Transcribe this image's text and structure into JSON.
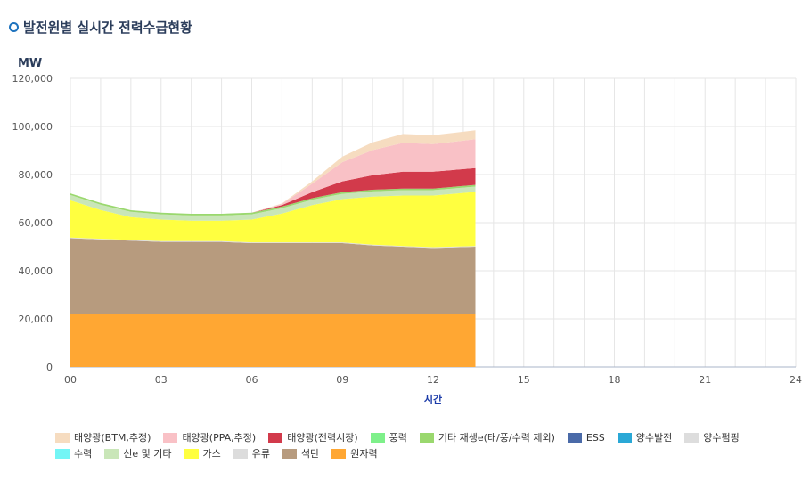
{
  "title": "발전원별 실시간 전력수급현황",
  "chart_data": {
    "type": "area",
    "stacked": true,
    "title": "발전원별 실시간 전력수급현황",
    "ylabel": "MW",
    "xlabel": "시간",
    "xlim": [
      0,
      24
    ],
    "ylim": [
      0,
      120000
    ],
    "xticks": [
      "00",
      "03",
      "06",
      "09",
      "12",
      "15",
      "18",
      "21",
      "24"
    ],
    "xtick_values": [
      0,
      3,
      6,
      9,
      12,
      15,
      18,
      21,
      24
    ],
    "yticks": [
      "0",
      "20,000",
      "40,000",
      "60,000",
      "80,000",
      "100,000",
      "120,000"
    ],
    "ytick_values": [
      0,
      20000,
      40000,
      60000,
      80000,
      100000,
      120000
    ],
    "grid": true,
    "legend_position": "bottom",
    "x": [
      0,
      1,
      2,
      3,
      4,
      5,
      6,
      7,
      8,
      9,
      10,
      11,
      12,
      13.4
    ],
    "series": [
      {
        "name": "원자력",
        "color": "#ffa733",
        "values": [
          22000,
          22000,
          22000,
          22000,
          22000,
          22000,
          22000,
          22000,
          22000,
          22000,
          22000,
          22000,
          22000,
          22000
        ]
      },
      {
        "name": "석탄",
        "color": "#b79b7e",
        "values": [
          31500,
          31000,
          30500,
          30000,
          30000,
          30000,
          29500,
          29500,
          29500,
          29500,
          28500,
          28000,
          27500,
          28000
        ]
      },
      {
        "name": "유류",
        "color": "#dcdcdc",
        "values": [
          300,
          300,
          300,
          300,
          300,
          300,
          300,
          300,
          300,
          300,
          300,
          300,
          300,
          300
        ]
      },
      {
        "name": "가스",
        "color": "#ffff40",
        "values": [
          15500,
          12000,
          9500,
          9000,
          8500,
          8500,
          9500,
          12000,
          15500,
          18000,
          20000,
          21000,
          21500,
          22500
        ]
      },
      {
        "name": "신e 및 기타",
        "color": "#c9e6b8",
        "values": [
          2200,
          2200,
          2200,
          2200,
          2200,
          2200,
          2200,
          2200,
          2200,
          2200,
          2200,
          2200,
          2200,
          2200
        ]
      },
      {
        "name": "수력",
        "color": "#73f5f5",
        "values": [
          0,
          0,
          0,
          0,
          0,
          0,
          0,
          0,
          0,
          0,
          0,
          0,
          0,
          0
        ]
      },
      {
        "name": "양수펌핑",
        "color": "#dddddd",
        "values": [
          0,
          0,
          0,
          0,
          0,
          0,
          0,
          0,
          0,
          0,
          0,
          0,
          0,
          0
        ]
      },
      {
        "name": "양수발전",
        "color": "#2aa8d6",
        "values": [
          0,
          0,
          0,
          0,
          0,
          0,
          0,
          0,
          0,
          0,
          0,
          0,
          0,
          0
        ]
      },
      {
        "name": "ESS",
        "color": "#4a6aa8",
        "values": [
          0,
          0,
          0,
          0,
          0,
          0,
          0,
          0,
          0,
          0,
          0,
          0,
          0,
          0
        ]
      },
      {
        "name": "기타 재생e(태/풍/수력 제외)",
        "color": "#9ad86e",
        "values": [
          700,
          700,
          700,
          700,
          700,
          700,
          700,
          700,
          700,
          700,
          700,
          700,
          700,
          700
        ]
      },
      {
        "name": "풍력",
        "color": "#7ef08a",
        "values": [
          0,
          0,
          0,
          0,
          0,
          0,
          0,
          0,
          0,
          0,
          0,
          0,
          0,
          0
        ]
      },
      {
        "name": "태양광(전력시장)",
        "color": "#d23a4b",
        "values": [
          0,
          0,
          0,
          0,
          0,
          0,
          0,
          600,
          2500,
          4500,
          6000,
          7000,
          7000,
          7000
        ]
      },
      {
        "name": "태양광(PPA,추정)",
        "color": "#f9c1c6",
        "values": [
          0,
          0,
          0,
          0,
          0,
          0,
          0,
          500,
          3500,
          8000,
          10500,
          12000,
          11500,
          12000
        ]
      },
      {
        "name": "태양광(BTM,추정)",
        "color": "#f6dcc0",
        "values": [
          0,
          0,
          0,
          0,
          0,
          0,
          0,
          200,
          1000,
          2300,
          3200,
          3700,
          3700,
          3700
        ]
      }
    ],
    "legend": [
      {
        "name": "태양광(BTM,추정)",
        "color": "#f6dcc0"
      },
      {
        "name": "태양광(PPA,추정)",
        "color": "#f9c1c6"
      },
      {
        "name": "태양광(전력시장)",
        "color": "#d23a4b"
      },
      {
        "name": "풍력",
        "color": "#7ef08a"
      },
      {
        "name": "기타 재생e(태/풍/수력 제외)",
        "color": "#9ad86e"
      },
      {
        "name": "ESS",
        "color": "#4a6aa8"
      },
      {
        "name": "양수발전",
        "color": "#2aa8d6"
      },
      {
        "name": "양수펌핑",
        "color": "#dddddd"
      },
      {
        "name": "수력",
        "color": "#73f5f5"
      },
      {
        "name": "신e 및 기타",
        "color": "#c9e6b8"
      },
      {
        "name": "가스",
        "color": "#ffff40"
      },
      {
        "name": "유류",
        "color": "#dcdcdc"
      },
      {
        "name": "석탄",
        "color": "#b79b7e"
      },
      {
        "name": "원자력",
        "color": "#ffa733"
      }
    ]
  }
}
